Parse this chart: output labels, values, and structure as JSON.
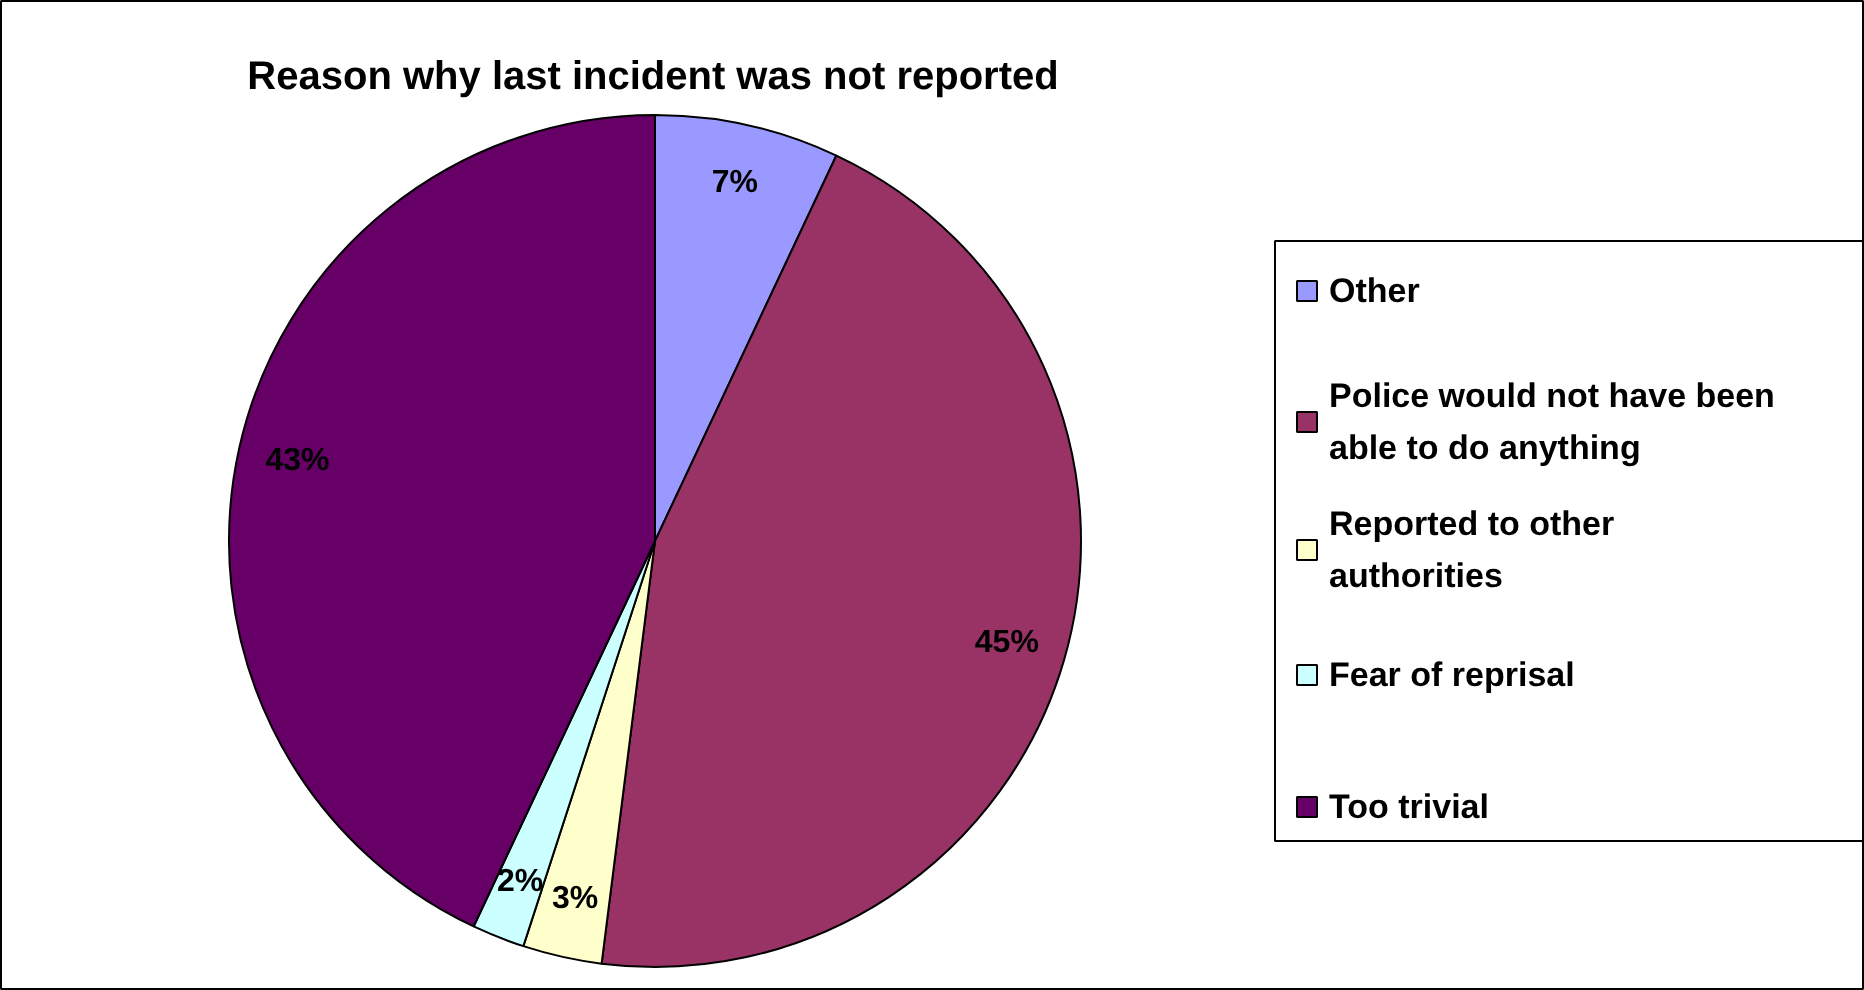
{
  "chart_data": {
    "type": "pie",
    "title": "Reason why last incident was not reported",
    "categories": [
      "Other",
      "Police would not have been able to do anything",
      "Reported to other authorities",
      "Fear of reprisal",
      "Too trivial"
    ],
    "values": [
      7,
      45,
      3,
      2,
      43
    ],
    "colors": [
      "#9999ff",
      "#993366",
      "#ffffcc",
      "#ccffff",
      "#660066"
    ],
    "value_labels": [
      "7%",
      "45%",
      "3%",
      "2%",
      "43%"
    ],
    "legend": "right"
  }
}
